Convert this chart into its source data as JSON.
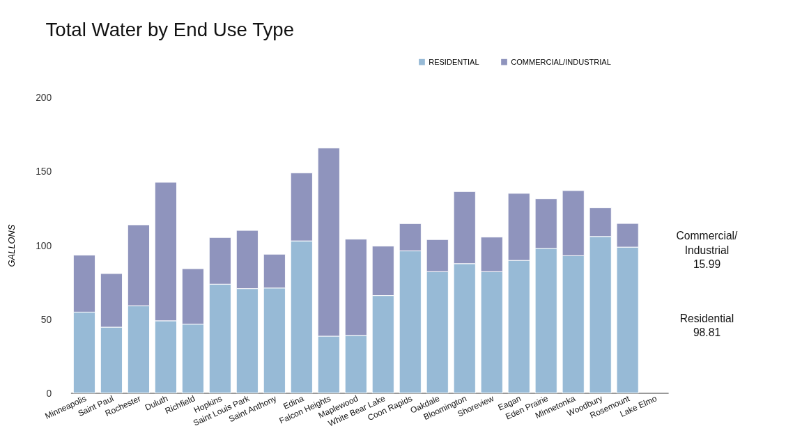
{
  "chart_data": {
    "type": "bar",
    "title": "Total Water by End Use Type",
    "ylabel": "GALLONS",
    "categories": [
      "Minneapolis",
      "Saint Paul",
      "Rochester",
      "Duluth",
      "Richfield",
      "Hopkins",
      "Saint Louis Park",
      "Saint Anthony",
      "Edina",
      "Falcon Heights",
      "Maplewood",
      "White Bear Lake",
      "Coon Rapids",
      "Oakdale",
      "Bloomington",
      "Shoreview",
      "Eagan",
      "Eden Prairie",
      "Minnetonka",
      "Woodbury",
      "Rosemount",
      "Lake Elmo"
    ],
    "series": [
      {
        "name": "RESIDENTIAL",
        "color": "#97bad6",
        "values": [
          54.8,
          44.6,
          59.1,
          48.9,
          46.6,
          73.7,
          70.7,
          71.1,
          103.0,
          38.5,
          39.0,
          66.0,
          96.3,
          82.2,
          87.6,
          82.2,
          89.8,
          98.0,
          93.0,
          106.0,
          98.8,
          null
        ]
      },
      {
        "name": "COMMERCIAL/INDUSTRIAL",
        "color": "#8f94bd",
        "values": [
          38.6,
          36.3,
          54.8,
          93.8,
          37.6,
          31.6,
          39.4,
          22.9,
          46.1,
          127.4,
          65.2,
          33.5,
          18.4,
          21.7,
          48.8,
          23.4,
          45.4,
          33.5,
          44.1,
          19.4,
          16.0,
          null
        ]
      }
    ],
    "stacked": true,
    "ylim": [
      0,
      200
    ],
    "yticks": [
      0,
      50,
      100,
      150,
      200
    ],
    "grid": false,
    "legend": "top right",
    "annotations": [
      "Commercial/ Industrial 15.99",
      "Residential 98.81"
    ]
  }
}
